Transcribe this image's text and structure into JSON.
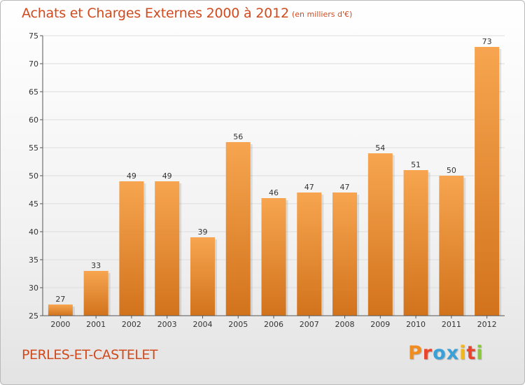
{
  "header": {
    "title": "Achats et Charges Externes 2000 à 2012",
    "unit": "(en milliers d'€)"
  },
  "footer": {
    "commune": "PERLES-ET-CASTELET",
    "logo_letters": [
      "P",
      "r",
      "o",
      "x",
      "i",
      "t",
      "i"
    ],
    "logo_colors": [
      "#f28c1e",
      "#e8452c",
      "#3aa0d8",
      "#3aa0d8",
      "#f2b71e",
      "#e8452c",
      "#8cc63f"
    ]
  },
  "colors": {
    "bar_top": "#f7a550",
    "bar_bottom": "#d2731c",
    "grid": "#dddddd",
    "text": "#d14a1e"
  },
  "chart_data": {
    "type": "bar",
    "title": "Achats et Charges Externes 2000 à 2012",
    "subtitle": "(en milliers d'€)",
    "categories": [
      "2000",
      "2001",
      "2002",
      "2003",
      "2004",
      "2005",
      "2006",
      "2007",
      "2008",
      "2009",
      "2010",
      "2011",
      "2012"
    ],
    "values": [
      27,
      33,
      49,
      49,
      39,
      56,
      46,
      47,
      47,
      54,
      51,
      50,
      73
    ],
    "ylim": [
      25,
      75
    ],
    "yticks": [
      25,
      30,
      35,
      40,
      45,
      50,
      55,
      60,
      65,
      70,
      75
    ],
    "grid": true,
    "data_labels": true
  }
}
